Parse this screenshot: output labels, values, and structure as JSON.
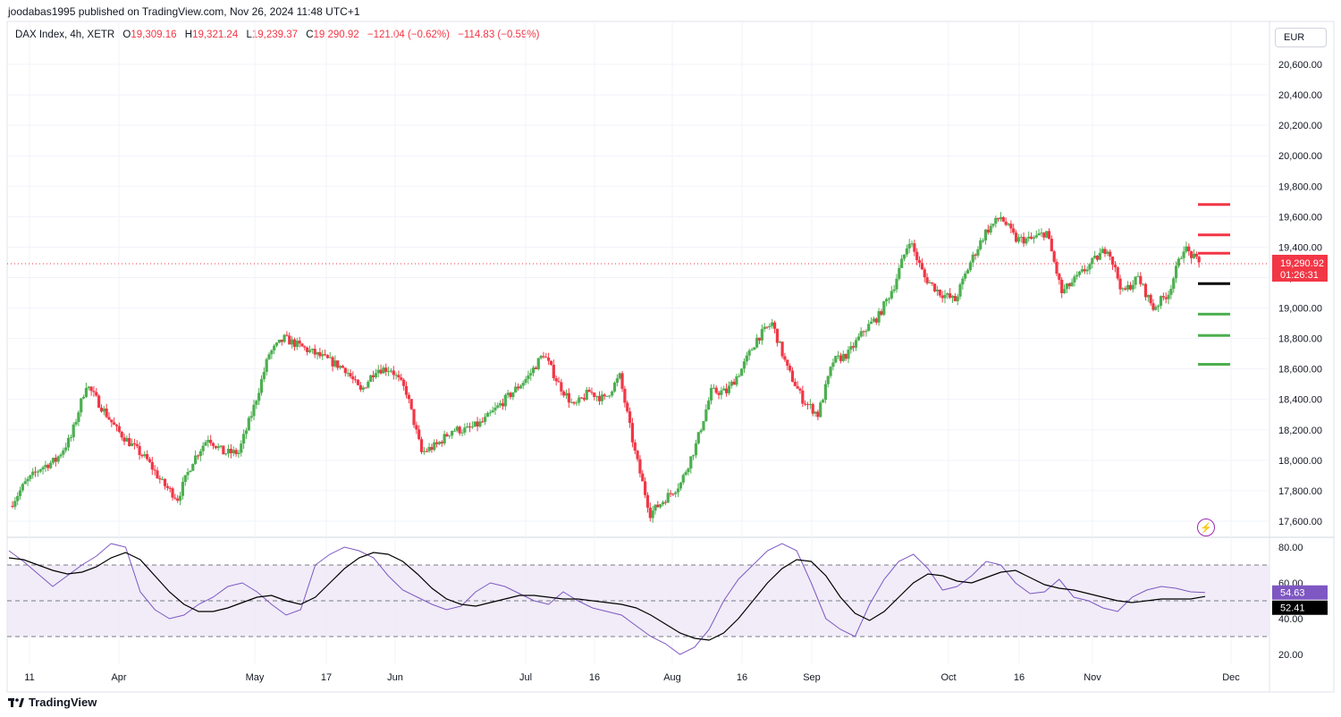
{
  "header": {
    "publisher_line": "joodabas1995 published on TradingView.com, Nov 26, 2024 11:48 UTC+1"
  },
  "legend": {
    "symbol": "DAX Index, 4h, XETR",
    "o_label": "O",
    "o_value": "19,309.16",
    "h_label": "H",
    "h_value": "19,321.24",
    "l_label": "L",
    "l_value": "19,239.37",
    "c_label": "C",
    "c_value": "19,290.92",
    "change": "−121.04 (−0.62%)",
    "change2": "−114.83 (−0.59%)"
  },
  "currency_button": "EUR",
  "footer": {
    "brand": "TradingView"
  },
  "colors": {
    "up": "#4caf50",
    "down": "#f23645",
    "rsi": "#7e57c2",
    "rsi_ma": "#000000",
    "rsi_band": "#ede7f6",
    "price_label_bg": "#f23645"
  },
  "chart_data": [
    {
      "type": "candlestick",
      "title": "DAX Index, 4h, XETR",
      "ylim": [
        17500,
        20700
      ],
      "y_ticks": [
        "20,600.00",
        "20,400.00",
        "20,200.00",
        "20,000.00",
        "19,800.00",
        "19,600.00",
        "19,400.00",
        "19,200.00",
        "19,000.00",
        "18,800.00",
        "18,600.00",
        "18,400.00",
        "18,200.00",
        "18,000.00",
        "17,800.00",
        "17,600.00"
      ],
      "x_ticks": [
        "11",
        "Apr",
        "May",
        "17",
        "Jun",
        "Jul",
        "16",
        "Aug",
        "16",
        "Sep",
        "Oct",
        "16",
        "Nov",
        "Dec"
      ],
      "last_price_label": "19,290.92",
      "countdown_label": "01:26:31",
      "close_path": [
        [
          "Mar 11",
          17700
        ],
        [
          "Mar 14",
          17850
        ],
        [
          "Mar 18",
          17950
        ],
        [
          "Mar 21",
          18000
        ],
        [
          "Mar 25",
          18150
        ],
        [
          "Mar 28",
          18500
        ],
        [
          "Apr 2",
          18350
        ],
        [
          "Apr 5",
          18200
        ],
        [
          "Apr 9",
          18100
        ],
        [
          "Apr 12",
          18000
        ],
        [
          "Apr 16",
          17850
        ],
        [
          "Apr 19",
          17750
        ],
        [
          "Apr 23",
          18000
        ],
        [
          "Apr 26",
          18150
        ],
        [
          "Apr 30",
          18050
        ],
        [
          "May 3",
          18050
        ],
        [
          "May 7",
          18350
        ],
        [
          "May 10",
          18700
        ],
        [
          "May 15",
          18800
        ],
        [
          "May 17",
          18750
        ],
        [
          "May 21",
          18700
        ],
        [
          "May 24",
          18650
        ],
        [
          "May 28",
          18600
        ],
        [
          "May 31",
          18450
        ],
        [
          "Jun 4",
          18600
        ],
        [
          "Jun 7",
          18600
        ],
        [
          "Jun 11",
          18450
        ],
        [
          "Jun 14",
          18050
        ],
        [
          "Jun 18",
          18100
        ],
        [
          "Jun 21",
          18200
        ],
        [
          "Jun 25",
          18200
        ],
        [
          "Jun 28",
          18250
        ],
        [
          "Jul 2",
          18350
        ],
        [
          "Jul 5",
          18450
        ],
        [
          "Jul 9",
          18550
        ],
        [
          "Jul 12",
          18700
        ],
        [
          "Jul 16",
          18500
        ],
        [
          "Jul 19",
          18350
        ],
        [
          "Jul 23",
          18450
        ],
        [
          "Jul 26",
          18400
        ],
        [
          "Jul 30",
          18550
        ],
        [
          "Aug 1",
          18050
        ],
        [
          "Aug 5",
          17650
        ],
        [
          "Aug 7",
          17750
        ],
        [
          "Aug 9",
          17850
        ],
        [
          "Aug 13",
          18100
        ],
        [
          "Aug 15",
          18450
        ],
        [
          "Aug 20",
          18450
        ],
        [
          "Aug 23",
          18600
        ],
        [
          "Aug 27",
          18800
        ],
        [
          "Aug 30",
          18900
        ],
        [
          "Sep 2",
          18600
        ],
        [
          "Sep 4",
          18400
        ],
        [
          "Sep 6",
          18300
        ],
        [
          "Sep 10",
          18650
        ],
        [
          "Sep 13",
          18700
        ],
        [
          "Sep 17",
          18850
        ],
        [
          "Sep 20",
          18950
        ],
        [
          "Sep 24",
          19150
        ],
        [
          "Sep 27",
          19450
        ],
        [
          "Oct 1",
          19200
        ],
        [
          "Oct 4",
          19100
        ],
        [
          "Oct 8",
          19050
        ],
        [
          "Oct 11",
          19300
        ],
        [
          "Oct 15",
          19500
        ],
        [
          "Oct 18",
          19600
        ],
        [
          "Oct 22",
          19450
        ],
        [
          "Oct 25",
          19450
        ],
        [
          "Oct 29",
          19500
        ],
        [
          "Oct 31",
          19100
        ],
        [
          "Nov 4",
          19200
        ],
        [
          "Nov 7",
          19300
        ],
        [
          "Nov 11",
          19400
        ],
        [
          "Nov 13",
          19100
        ],
        [
          "Nov 15",
          19200
        ],
        [
          "Nov 19",
          19000
        ],
        [
          "Nov 21",
          19100
        ],
        [
          "Nov 25",
          19400
        ],
        [
          "Nov 26",
          19290.92
        ]
      ],
      "horizontal_levels": {
        "resistance": [
          19680,
          19480,
          19360
        ],
        "pivot": [
          19160
        ],
        "support": [
          18960,
          18820,
          18630
        ]
      }
    },
    {
      "type": "line",
      "title": "RSI",
      "ylim": [
        15,
        85
      ],
      "y_ticks": [
        "80.00",
        "60.00",
        "40.00",
        "20.00"
      ],
      "upper_band": 70,
      "middle_band": 50,
      "lower_band": 30,
      "rsi_value_label": "54.63",
      "ma_value_label": "52.41",
      "series": [
        {
          "values": [
            78,
            72,
            65,
            58,
            64,
            70,
            75,
            82,
            80,
            55,
            45,
            40,
            42,
            48,
            52,
            58,
            60,
            55,
            48,
            42,
            45,
            70,
            76,
            80,
            78,
            74,
            64,
            56,
            52,
            48,
            45,
            47,
            55,
            60,
            58,
            54,
            50,
            48,
            55,
            50,
            46,
            44,
            42,
            36,
            30,
            26,
            20,
            24,
            34,
            50,
            62,
            70,
            78,
            82,
            78,
            60,
            40,
            34,
            30,
            48,
            62,
            72,
            76,
            68,
            56,
            58,
            64,
            72,
            70,
            60,
            54,
            55,
            62,
            52,
            50,
            46,
            44,
            52,
            56,
            58,
            57,
            55,
            54.63
          ]
        },
        {
          "values": [
            74,
            73,
            70,
            67,
            65,
            66,
            69,
            74,
            77,
            73,
            64,
            55,
            48,
            44,
            44,
            46,
            49,
            52,
            53,
            50,
            48,
            52,
            60,
            68,
            74,
            77,
            76,
            72,
            65,
            57,
            51,
            48,
            47,
            49,
            51,
            53,
            53,
            52,
            51,
            51,
            50,
            49,
            48,
            46,
            42,
            37,
            32,
            29,
            28,
            32,
            40,
            50,
            60,
            68,
            73,
            72,
            64,
            52,
            43,
            39,
            44,
            52,
            60,
            65,
            64,
            61,
            60,
            63,
            66,
            67,
            63,
            59,
            57,
            56,
            54,
            52,
            50,
            49,
            50,
            51,
            51,
            51,
            52.41
          ]
        }
      ]
    }
  ]
}
